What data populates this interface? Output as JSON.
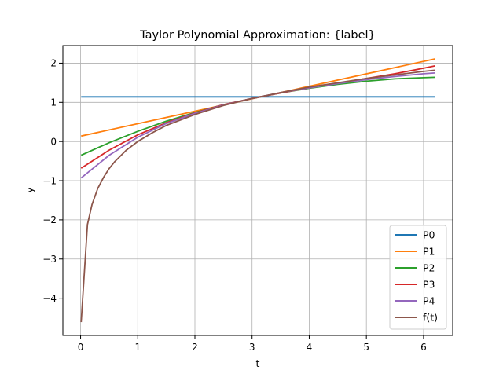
{
  "chart_data": {
    "type": "line",
    "title": "Taylor Polynomial Approximation: {label}",
    "xlabel": "t",
    "ylabel": "y",
    "xlim": [
      -0.31,
      6.51
    ],
    "ylim": [
      -4.95,
      2.45
    ],
    "xticks": [
      0,
      1,
      2,
      3,
      4,
      5,
      6
    ],
    "yticks": [
      -4,
      -3,
      -2,
      -1,
      0,
      1,
      2
    ],
    "xtick_labels": [
      "0",
      "1",
      "2",
      "3",
      "4",
      "5",
      "6"
    ],
    "ytick_labels": [
      "−4",
      "−3",
      "−2",
      "−1",
      "0",
      "1",
      "2"
    ],
    "grid": true,
    "legend_position": "bottom-right",
    "series": [
      {
        "name": "P0",
        "color": "#1f77b4",
        "x": [
          0.01,
          6.2
        ],
        "y": [
          1.14,
          1.14
        ]
      },
      {
        "name": "P1",
        "color": "#ff7f0e",
        "x": [
          0.01,
          6.2
        ],
        "y": [
          0.14,
          2.11
        ]
      },
      {
        "name": "P2",
        "color": "#2ca02c",
        "x": [
          0.01,
          0.5,
          1.0,
          1.5,
          2.0,
          2.5,
          3.0,
          3.14,
          3.5,
          4.0,
          4.5,
          5.0,
          5.5,
          6.0,
          6.2
        ],
        "y": [
          -0.35,
          -0.03,
          0.26,
          0.52,
          0.74,
          0.94,
          1.1,
          1.14,
          1.24,
          1.36,
          1.46,
          1.54,
          1.6,
          1.63,
          1.64
        ]
      },
      {
        "name": "P3",
        "color": "#d62728",
        "x": [
          0.01,
          0.5,
          1.0,
          1.5,
          2.0,
          2.5,
          3.0,
          3.14,
          3.5,
          4.0,
          4.5,
          5.0,
          5.5,
          6.0,
          6.2
        ],
        "y": [
          -0.68,
          -0.22,
          0.17,
          0.48,
          0.73,
          0.94,
          1.1,
          1.14,
          1.24,
          1.37,
          1.49,
          1.61,
          1.73,
          1.87,
          1.93
        ]
      },
      {
        "name": "P4",
        "color": "#9467bd",
        "x": [
          0.01,
          0.5,
          1.0,
          1.5,
          2.0,
          2.5,
          3.0,
          3.14,
          3.5,
          4.0,
          4.5,
          5.0,
          5.5,
          6.0,
          6.2
        ],
        "y": [
          -0.93,
          -0.35,
          0.11,
          0.46,
          0.72,
          0.93,
          1.1,
          1.14,
          1.25,
          1.37,
          1.48,
          1.58,
          1.66,
          1.73,
          1.75
        ]
      },
      {
        "name": "f(t)",
        "color": "#8c564b",
        "x": [
          0.01,
          0.12,
          0.2,
          0.3,
          0.4,
          0.5,
          0.6,
          0.8,
          1.0,
          1.25,
          1.5,
          2.0,
          2.5,
          3.0,
          3.5,
          4.0,
          4.5,
          5.0,
          5.5,
          6.0,
          6.2
        ],
        "y": [
          -4.61,
          -2.12,
          -1.61,
          -1.2,
          -0.92,
          -0.69,
          -0.51,
          -0.22,
          0.0,
          0.22,
          0.41,
          0.69,
          0.92,
          1.1,
          1.25,
          1.39,
          1.5,
          1.61,
          1.7,
          1.79,
          1.82
        ]
      }
    ]
  }
}
